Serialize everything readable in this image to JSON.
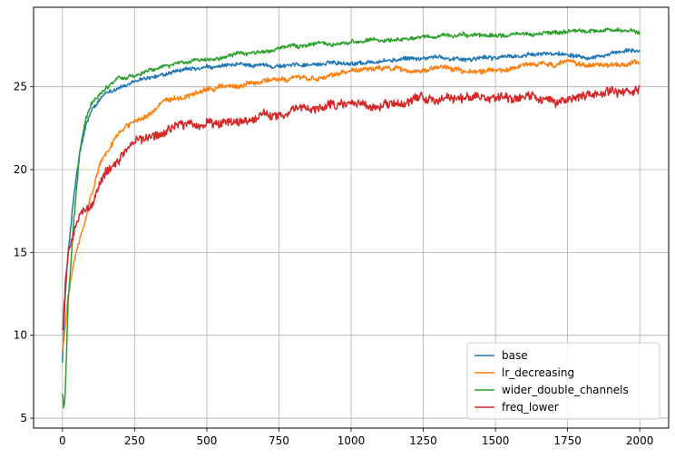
{
  "chart_data": {
    "type": "line",
    "title": "",
    "xlabel": "",
    "ylabel": "",
    "xlim": [
      -100,
      2100
    ],
    "ylim": [
      4.4,
      29.8
    ],
    "grid": true,
    "legend_position": "bottom-right",
    "x_ticks": [
      0,
      250,
      500,
      750,
      1000,
      1250,
      1500,
      1750,
      2000
    ],
    "x_tick_labels": [
      "0",
      "250",
      "500",
      "750",
      "1000",
      "1250",
      "1500",
      "1750",
      "2000"
    ],
    "y_ticks": [
      5,
      10,
      15,
      20,
      25
    ],
    "y_tick_labels": [
      "5",
      "10",
      "15",
      "20",
      "25"
    ],
    "series": [
      {
        "name": "base",
        "color": "#1f77b4",
        "x": [
          0,
          10,
          20,
          40,
          60,
          80,
          100,
          125,
          150,
          200,
          250,
          300,
          400,
          500,
          600,
          750,
          1000,
          1250,
          1500,
          1750,
          2000
        ],
        "y": [
          8.5,
          12.5,
          15.0,
          18.5,
          21.0,
          22.5,
          23.5,
          24.0,
          24.5,
          25.0,
          25.2,
          25.5,
          25.8,
          26.0,
          26.2,
          26.3,
          26.5,
          26.7,
          26.8,
          27.0,
          27.1
        ]
      },
      {
        "name": "lr_decreasing",
        "color": "#ff7f0e",
        "x": [
          0,
          10,
          20,
          40,
          60,
          80,
          100,
          125,
          150,
          200,
          250,
          300,
          400,
          500,
          600,
          750,
          1000,
          1250,
          1500,
          1750,
          2000
        ],
        "y": [
          9.0,
          10.5,
          12.5,
          14.5,
          15.8,
          17.0,
          18.5,
          20.0,
          21.0,
          22.3,
          23.0,
          23.5,
          24.3,
          24.8,
          25.1,
          25.4,
          25.8,
          26.0,
          26.1,
          26.3,
          26.4
        ]
      },
      {
        "name": "wider_double_channels",
        "color": "#2ca02c",
        "x": [
          0,
          5,
          10,
          20,
          40,
          60,
          80,
          100,
          125,
          150,
          200,
          250,
          300,
          400,
          500,
          600,
          750,
          1000,
          1250,
          1500,
          1750,
          2000
        ],
        "y": [
          6.5,
          5.5,
          6.6,
          12.0,
          17.0,
          21.0,
          23.0,
          24.0,
          24.5,
          25.0,
          25.5,
          25.8,
          26.0,
          26.4,
          26.7,
          27.0,
          27.3,
          27.6,
          27.9,
          28.1,
          28.3,
          28.4
        ]
      },
      {
        "name": "freq_lower",
        "color": "#d62728",
        "x": [
          0,
          10,
          20,
          40,
          60,
          80,
          100,
          125,
          150,
          200,
          250,
          300,
          400,
          500,
          600,
          750,
          1000,
          1250,
          1500,
          1750,
          2000
        ],
        "y": [
          10.2,
          13.0,
          15.0,
          16.0,
          17.0,
          17.5,
          18.0,
          19.0,
          20.0,
          21.0,
          21.5,
          22.0,
          22.5,
          22.8,
          23.0,
          23.4,
          23.8,
          24.1,
          24.3,
          24.5,
          24.7
        ]
      }
    ]
  }
}
